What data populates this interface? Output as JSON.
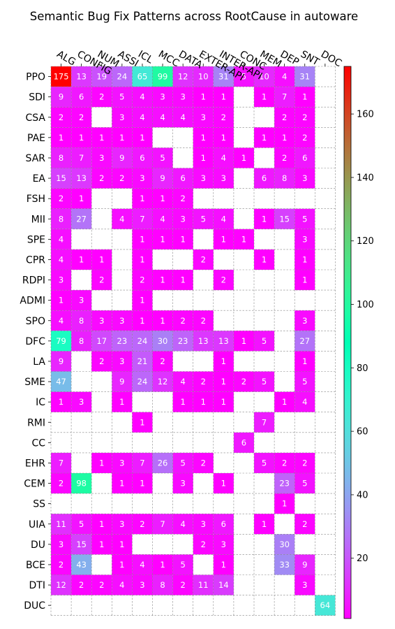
{
  "chart_data": {
    "type": "heatmap",
    "title": "Semantic Bug Fix Patterns across RootCause in autoware",
    "x_categories": [
      "ALG",
      "CONFIG",
      "NUM",
      "ASSI",
      "ICL",
      "MCC",
      "DATA",
      "EXTER-API",
      "INTER-API",
      "CONC",
      "MEM",
      "DEP",
      "SNT",
      "DOC"
    ],
    "y_categories": [
      "PPO",
      "SDI",
      "CSA",
      "PAE",
      "SAR",
      "EA",
      "FSH",
      "MII",
      "SPE",
      "CPR",
      "RDPI",
      "ADMI",
      "SPO",
      "DFC",
      "LA",
      "SME",
      "IC",
      "RMI",
      "CC",
      "EHR",
      "CEM",
      "SS",
      "UIA",
      "DU",
      "BCE",
      "DTI",
      "DUC"
    ],
    "values": [
      [
        175,
        13,
        19,
        24,
        65,
        99,
        12,
        10,
        31,
        5,
        10,
        4,
        31,
        null
      ],
      [
        9,
        6,
        2,
        5,
        4,
        3,
        3,
        1,
        1,
        null,
        1,
        7,
        1,
        null
      ],
      [
        2,
        2,
        null,
        3,
        4,
        4,
        4,
        3,
        2,
        null,
        null,
        2,
        2,
        null
      ],
      [
        1,
        1,
        1,
        1,
        1,
        null,
        null,
        1,
        1,
        null,
        1,
        1,
        2,
        null
      ],
      [
        8,
        7,
        3,
        9,
        6,
        5,
        null,
        1,
        4,
        1,
        null,
        2,
        6,
        null
      ],
      [
        15,
        13,
        2,
        2,
        3,
        9,
        6,
        3,
        3,
        null,
        6,
        8,
        3,
        null
      ],
      [
        2,
        1,
        null,
        null,
        1,
        1,
        2,
        null,
        null,
        null,
        null,
        null,
        null,
        null
      ],
      [
        8,
        27,
        null,
        4,
        7,
        4,
        3,
        5,
        4,
        null,
        1,
        15,
        5,
        null
      ],
      [
        4,
        null,
        null,
        null,
        1,
        1,
        1,
        null,
        1,
        1,
        null,
        null,
        3,
        null
      ],
      [
        4,
        1,
        1,
        null,
        1,
        null,
        null,
        2,
        null,
        null,
        1,
        null,
        1,
        null
      ],
      [
        3,
        null,
        2,
        null,
        2,
        1,
        1,
        null,
        2,
        null,
        null,
        null,
        1,
        null
      ],
      [
        1,
        3,
        null,
        null,
        1,
        null,
        null,
        null,
        null,
        null,
        null,
        null,
        null,
        null
      ],
      [
        4,
        8,
        3,
        3,
        1,
        1,
        2,
        2,
        null,
        null,
        null,
        null,
        3,
        null
      ],
      [
        79,
        8,
        17,
        23,
        24,
        30,
        23,
        13,
        13,
        1,
        5,
        null,
        27,
        null
      ],
      [
        9,
        null,
        2,
        3,
        21,
        2,
        null,
        null,
        1,
        null,
        null,
        null,
        1,
        null
      ],
      [
        47,
        null,
        null,
        9,
        24,
        12,
        4,
        2,
        1,
        2,
        5,
        null,
        5,
        null
      ],
      [
        1,
        3,
        null,
        1,
        null,
        null,
        1,
        1,
        1,
        null,
        null,
        1,
        4,
        null
      ],
      [
        null,
        null,
        null,
        null,
        1,
        null,
        null,
        null,
        null,
        null,
        7,
        null,
        null,
        null
      ],
      [
        null,
        null,
        null,
        null,
        null,
        null,
        null,
        null,
        null,
        6,
        null,
        null,
        null,
        null
      ],
      [
        7,
        null,
        1,
        3,
        7,
        26,
        5,
        2,
        null,
        null,
        5,
        2,
        2,
        null
      ],
      [
        2,
        98,
        null,
        1,
        1,
        null,
        3,
        null,
        1,
        null,
        null,
        23,
        5,
        null
      ],
      [
        null,
        null,
        null,
        null,
        null,
        null,
        null,
        null,
        null,
        null,
        null,
        1,
        null,
        null
      ],
      [
        11,
        5,
        1,
        3,
        2,
        7,
        4,
        3,
        6,
        null,
        1,
        null,
        2,
        null
      ],
      [
        3,
        15,
        1,
        1,
        null,
        null,
        null,
        2,
        3,
        null,
        null,
        30,
        null,
        null
      ],
      [
        2,
        43,
        null,
        1,
        4,
        1,
        5,
        null,
        1,
        null,
        null,
        33,
        9,
        null
      ],
      [
        12,
        2,
        2,
        4,
        3,
        8,
        2,
        11,
        14,
        null,
        null,
        null,
        3,
        null
      ],
      [
        null,
        null,
        null,
        null,
        null,
        null,
        null,
        null,
        null,
        null,
        null,
        null,
        null,
        64
      ]
    ],
    "colormap": "rainbow",
    "value_range": [
      1,
      175
    ],
    "colorbar_ticks": [
      20,
      40,
      60,
      80,
      100,
      120,
      140,
      160
    ],
    "grid": true
  }
}
